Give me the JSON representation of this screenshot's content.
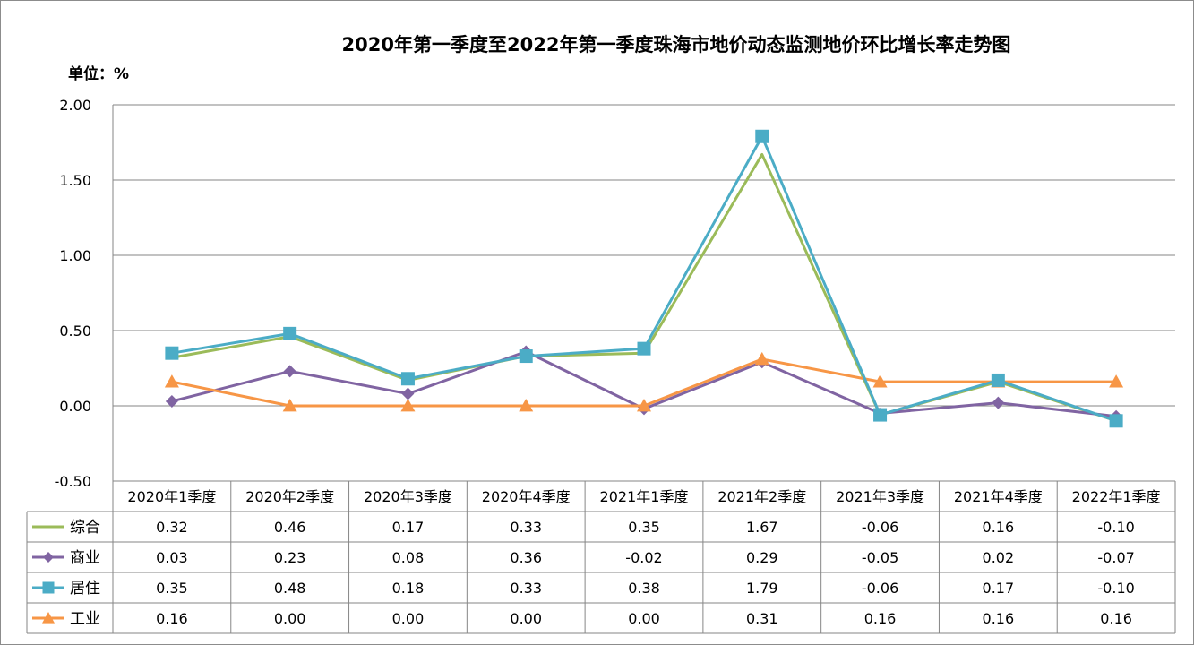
{
  "chart_data": {
    "type": "line",
    "title": "2020年第一季度至2022年第一季度珠海市地价动态监测地价环比增长率走势图",
    "unit_label": "单位：%",
    "categories": [
      "2020年1季度",
      "2020年2季度",
      "2020年3季度",
      "2020年4季度",
      "2021年1季度",
      "2021年2季度",
      "2021年3季度",
      "2021年4季度",
      "2022年1季度"
    ],
    "ylim": [
      -0.5,
      2.0
    ],
    "yticks": [
      "2.00",
      "1.50",
      "1.00",
      "0.50",
      "0.00",
      "-0.50"
    ],
    "grid": true,
    "legend": "data-table-left",
    "series": [
      {
        "name": "综合",
        "color": "#9bbb59",
        "marker": "none",
        "values": [
          0.32,
          0.46,
          0.17,
          0.33,
          0.35,
          1.67,
          -0.06,
          0.16,
          -0.1
        ],
        "labels": [
          "0.32",
          "0.46",
          "0.17",
          "0.33",
          "0.35",
          "1.67",
          "-0.06",
          "0.16",
          "-0.10"
        ]
      },
      {
        "name": "商业",
        "color": "#8064a2",
        "marker": "diamond",
        "values": [
          0.03,
          0.23,
          0.08,
          0.36,
          -0.02,
          0.29,
          -0.05,
          0.02,
          -0.07
        ],
        "labels": [
          "0.03",
          "0.23",
          "0.08",
          "0.36",
          "-0.02",
          "0.29",
          "-0.05",
          "0.02",
          "-0.07"
        ]
      },
      {
        "name": "居住",
        "color": "#4bacc6",
        "marker": "square",
        "values": [
          0.35,
          0.48,
          0.18,
          0.33,
          0.38,
          1.79,
          -0.06,
          0.17,
          -0.1
        ],
        "labels": [
          "0.35",
          "0.48",
          "0.18",
          "0.33",
          "0.38",
          "1.79",
          "-0.06",
          "0.17",
          "-0.10"
        ]
      },
      {
        "name": "工业",
        "color": "#f79646",
        "marker": "triangle",
        "values": [
          0.16,
          0.0,
          0.0,
          0.0,
          0.0,
          0.31,
          0.16,
          0.16,
          0.16
        ],
        "labels": [
          "0.16",
          "0.00",
          "0.00",
          "0.00",
          "0.00",
          "0.31",
          "0.16",
          "0.16",
          "0.16"
        ]
      }
    ]
  }
}
